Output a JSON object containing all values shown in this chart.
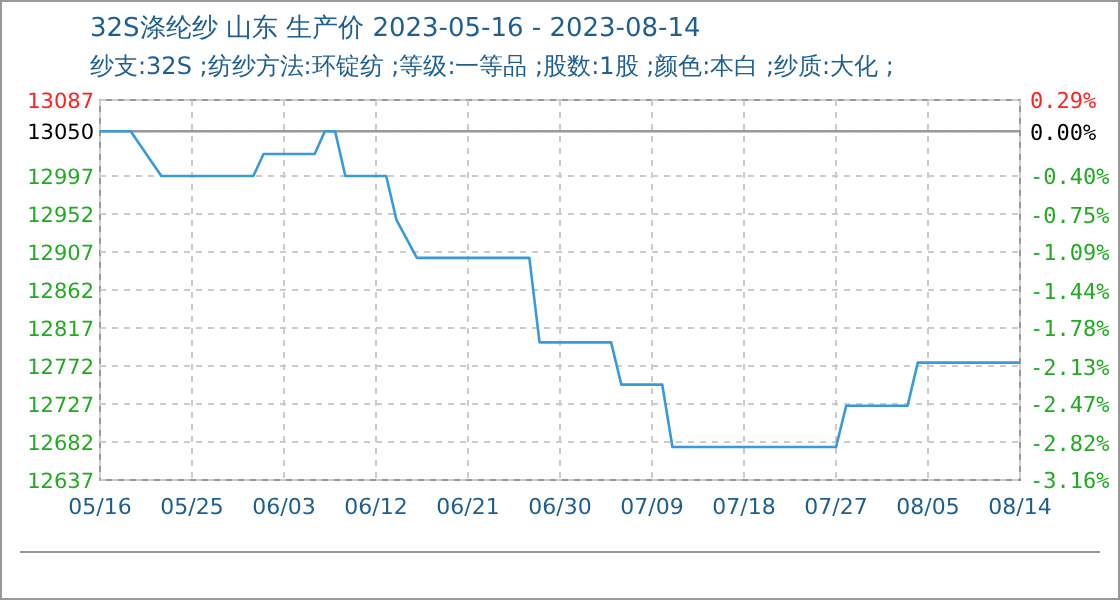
{
  "chart_data": {
    "type": "line",
    "title": "32S涤纶纱 山东 生产价 2023-05-16 - 2023-08-14",
    "subtitle": "纱支:32S ;纺纱方法:环锭纺 ;等级:一等品 ;股数:1股 ;颜色:本白 ;纱质:大化 ;",
    "x": [
      "2023-05-16",
      "2023-05-19",
      "2023-05-22",
      "2023-05-31",
      "2023-06-01",
      "2023-06-06",
      "2023-06-07",
      "2023-06-08",
      "2023-06-09",
      "2023-06-13",
      "2023-06-14",
      "2023-06-16",
      "2023-06-27",
      "2023-06-28",
      "2023-07-05",
      "2023-07-06",
      "2023-07-10",
      "2023-07-11",
      "2023-07-27",
      "2023-07-28",
      "2023-08-03",
      "2023-08-04",
      "2023-08-14"
    ],
    "series": [
      {
        "color": "#3a9ad9",
        "values": [
          13050,
          13050,
          12997,
          12997,
          13023,
          13023,
          13050,
          13050,
          12997,
          12997,
          12945,
          12900,
          12900,
          12800,
          12800,
          12750,
          12750,
          12676,
          12676,
          12725,
          12725,
          12776,
          12776
        ]
      }
    ],
    "xlim": [
      "2023-05-16",
      "2023-08-14"
    ],
    "xticks": [
      {
        "value": "2023-05-16",
        "label": "05/16"
      },
      {
        "value": "2023-05-25",
        "label": "05/25"
      },
      {
        "value": "2023-06-03",
        "label": "06/03"
      },
      {
        "value": "2023-06-12",
        "label": "06/12"
      },
      {
        "value": "2023-06-21",
        "label": "06/21"
      },
      {
        "value": "2023-06-30",
        "label": "06/30"
      },
      {
        "value": "2023-07-09",
        "label": "07/09"
      },
      {
        "value": "2023-07-18",
        "label": "07/18"
      },
      {
        "value": "2023-07-27",
        "label": "07/27"
      },
      {
        "value": "2023-08-05",
        "label": "08/05"
      },
      {
        "value": "2023-08-14",
        "label": "08/14"
      }
    ],
    "ylim": [
      12637,
      13087
    ],
    "yticks": [
      12637,
      12682,
      12727,
      12772,
      12817,
      12862,
      12907,
      12952,
      12997,
      13050,
      13087
    ],
    "y2lim": [
      -3.16,
      0.29
    ],
    "y2ticks": [
      {
        "value": -3.16,
        "label": "-3.16%"
      },
      {
        "value": -2.82,
        "label": "-2.82%"
      },
      {
        "value": -2.47,
        "label": "-2.47%"
      },
      {
        "value": -2.13,
        "label": "-2.13%"
      },
      {
        "value": -1.78,
        "label": "-1.78%"
      },
      {
        "value": -1.44,
        "label": "-1.44%"
      },
      {
        "value": -1.09,
        "label": "-1.09%"
      },
      {
        "value": -0.75,
        "label": "-0.75%"
      },
      {
        "value": -0.4,
        "label": "-0.40%"
      },
      {
        "value": 0,
        "label": "0.00%"
      },
      {
        "value": 0.29,
        "label": "0.29%"
      }
    ],
    "ref_lines": [
      {
        "axis": "y",
        "value": 13050,
        "color": "#999999"
      }
    ],
    "grid": true,
    "line_style": "solid"
  }
}
